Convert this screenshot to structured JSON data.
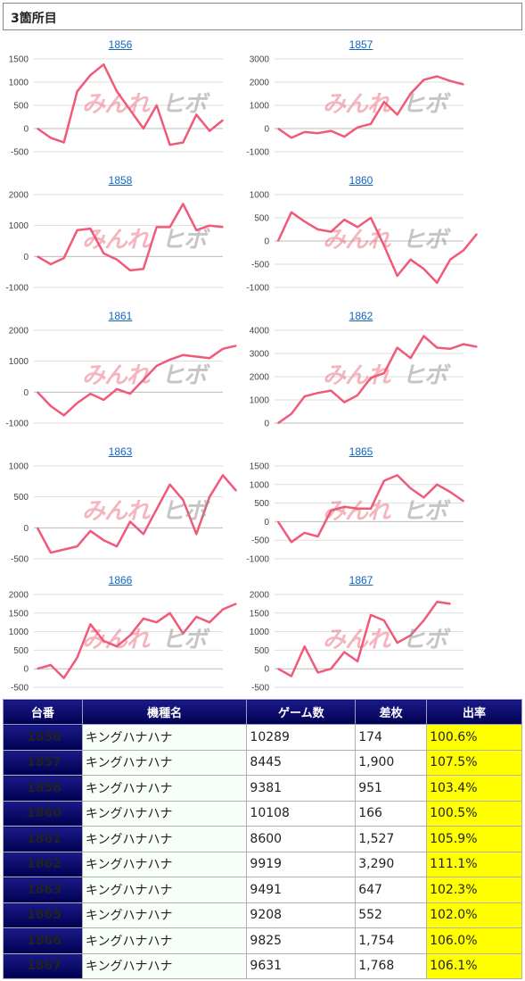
{
  "section": {
    "title": "3箇所目"
  },
  "watermark": {
    "part1": "みんれ",
    "part2": "ヒボ"
  },
  "colors": {
    "line": "#f05a78",
    "grid": "#dddddd",
    "link": "#1565c0",
    "header_bg": "#000060",
    "rate_bg": "#ffff00"
  },
  "table": {
    "headers": {
      "no": "台番",
      "name": "機種名",
      "games": "ゲーム数",
      "diff": "差枚",
      "rate": "出率"
    },
    "rows": [
      {
        "no": "1856",
        "name": "キングハナハナ",
        "games": "10289",
        "diff": "174",
        "rate": "100.6%"
      },
      {
        "no": "1857",
        "name": "キングハナハナ",
        "games": "8445",
        "diff": "1,900",
        "rate": "107.5%"
      },
      {
        "no": "1858",
        "name": "キングハナハナ",
        "games": "9381",
        "diff": "951",
        "rate": "103.4%"
      },
      {
        "no": "1860",
        "name": "キングハナハナ",
        "games": "10108",
        "diff": "166",
        "rate": "100.5%"
      },
      {
        "no": "1861",
        "name": "キングハナハナ",
        "games": "8600",
        "diff": "1,527",
        "rate": "105.9%"
      },
      {
        "no": "1862",
        "name": "キングハナハナ",
        "games": "9919",
        "diff": "3,290",
        "rate": "111.1%"
      },
      {
        "no": "1863",
        "name": "キングハナハナ",
        "games": "9491",
        "diff": "647",
        "rate": "102.3%"
      },
      {
        "no": "1865",
        "name": "キングハナハナ",
        "games": "9208",
        "diff": "552",
        "rate": "102.0%"
      },
      {
        "no": "1866",
        "name": "キングハナハナ",
        "games": "9825",
        "diff": "1,754",
        "rate": "106.0%"
      },
      {
        "no": "1867",
        "name": "キングハナハナ",
        "games": "9631",
        "diff": "1,768",
        "rate": "106.1%"
      }
    ]
  },
  "chart_data": [
    {
      "type": "line",
      "title": "1856",
      "ylim": [
        -500,
        1500
      ],
      "yticks": [
        "1500",
        "1000",
        "500",
        "0",
        "-500"
      ],
      "grid": true,
      "values": [
        0,
        -200,
        -300,
        800,
        1150,
        1380,
        800,
        400,
        0,
        500,
        -350,
        -300,
        300,
        -50,
        180
      ]
    },
    {
      "type": "line",
      "title": "1857",
      "ylim": [
        -1000,
        3000
      ],
      "yticks": [
        "3000",
        "2000",
        "1000",
        "0",
        "-1000"
      ],
      "grid": true,
      "values": [
        0,
        -400,
        -150,
        -200,
        -100,
        -350,
        50,
        200,
        1150,
        600,
        1500,
        2100,
        2250,
        2050,
        1900
      ]
    },
    {
      "type": "line",
      "title": "1858",
      "ylim": [
        -1000,
        2000
      ],
      "yticks": [
        "2000",
        "1000",
        "0",
        "-1000"
      ],
      "grid": true,
      "values": [
        0,
        -250,
        -50,
        850,
        900,
        100,
        -100,
        -450,
        -400,
        950,
        950,
        1700,
        850,
        1000,
        950
      ]
    },
    {
      "type": "line",
      "title": "1860",
      "ylim": [
        -1000,
        1000
      ],
      "yticks": [
        "1000",
        "500",
        "0",
        "-500",
        "-1000"
      ],
      "grid": true,
      "values": [
        0,
        620,
        420,
        250,
        200,
        460,
        300,
        500,
        -100,
        -750,
        -400,
        -600,
        -900,
        -400,
        -200,
        150
      ]
    },
    {
      "type": "line",
      "title": "1861",
      "ylim": [
        -1000,
        2000
      ],
      "yticks": [
        "2000",
        "1000",
        "0",
        "-1000"
      ],
      "grid": true,
      "values": [
        0,
        -450,
        -750,
        -350,
        -50,
        -250,
        100,
        -50,
        400,
        850,
        1050,
        1200,
        1150,
        1100,
        1400,
        1500
      ]
    },
    {
      "type": "line",
      "title": "1862",
      "ylim": [
        0,
        4000
      ],
      "yticks": [
        "4000",
        "3000",
        "2000",
        "1000",
        "0"
      ],
      "grid": true,
      "values": [
        0,
        400,
        1150,
        1300,
        1400,
        900,
        1200,
        1950,
        2150,
        3250,
        2800,
        3750,
        3250,
        3200,
        3400,
        3290
      ]
    },
    {
      "type": "line",
      "title": "1863",
      "ylim": [
        -500,
        1000
      ],
      "yticks": [
        "1000",
        "500",
        "0",
        "-500"
      ],
      "grid": true,
      "values": [
        0,
        -400,
        -350,
        -300,
        -50,
        -200,
        -300,
        100,
        -100,
        300,
        700,
        450,
        -100,
        500,
        850,
        600
      ]
    },
    {
      "type": "line",
      "title": "1865",
      "ylim": [
        -1000,
        1500
      ],
      "yticks": [
        "1500",
        "1000",
        "500",
        "0",
        "-500",
        "-1000"
      ],
      "grid": true,
      "values": [
        0,
        -550,
        -300,
        -400,
        300,
        400,
        350,
        350,
        1100,
        1250,
        900,
        650,
        1000,
        800,
        550
      ]
    },
    {
      "type": "line",
      "title": "1866",
      "ylim": [
        -500,
        2000
      ],
      "yticks": [
        "2000",
        "1500",
        "1000",
        "500",
        "0",
        "-500"
      ],
      "grid": true,
      "values": [
        0,
        100,
        -250,
        300,
        1200,
        750,
        600,
        900,
        1350,
        1250,
        1500,
        950,
        1400,
        1250,
        1600,
        1750
      ]
    },
    {
      "type": "line",
      "title": "1867",
      "ylim": [
        -500,
        2000
      ],
      "yticks": [
        "2000",
        "1500",
        "1000",
        "500",
        "0",
        "-500"
      ],
      "grid": true,
      "values": [
        0,
        -200,
        600,
        -100,
        0,
        450,
        200,
        1450,
        1300,
        700,
        900,
        1300,
        1800,
        1750
      ]
    }
  ]
}
